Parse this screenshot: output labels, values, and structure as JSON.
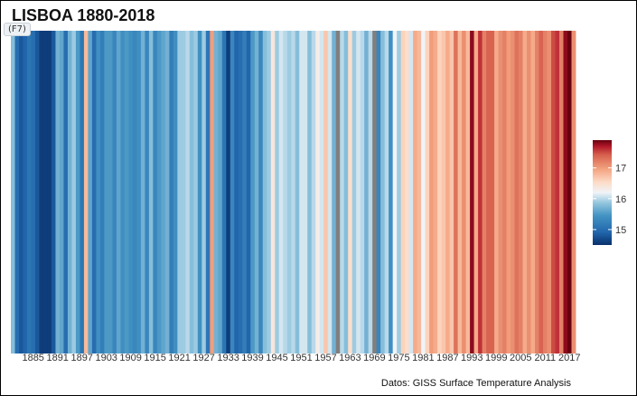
{
  "window": {
    "hotkey": "(F7)"
  },
  "chart_data": {
    "type": "heatmap",
    "title": "LISBOA 1880-2018",
    "caption": "Datos: GISS Surface Temperature Analysis",
    "x_start": 1880,
    "x_end": 2018,
    "tick_labels": [
      "1885",
      "1891",
      "1897",
      "1903",
      "1909",
      "1915",
      "1921",
      "1927",
      "1933",
      "1939",
      "1945",
      "1951",
      "1957",
      "1963",
      "1969",
      "1975",
      "1981",
      "1987",
      "1993",
      "1999",
      "2005",
      "2011",
      "2017"
    ],
    "legend": {
      "ticks": [
        15,
        16,
        17
      ],
      "range": [
        14.5,
        17.9
      ],
      "placement": "right"
    },
    "missing_years": [
      1960,
      1969
    ],
    "values": [
      15.8,
      15.0,
      14.8,
      14.9,
      15.1,
      15.0,
      14.8,
      14.6,
      14.6,
      14.6,
      14.8,
      15.7,
      15.6,
      15.0,
      15.7,
      15.9,
      15.5,
      15.1,
      16.8,
      15.6,
      15.0,
      15.4,
      15.2,
      15.5,
      15.5,
      15.3,
      15.6,
      15.4,
      15.5,
      15.4,
      15.3,
      15.4,
      15.7,
      15.3,
      15.8,
      15.3,
      15.5,
      15.6,
      15.7,
      15.2,
      15.4,
      15.9,
      15.9,
      16.0,
      15.8,
      15.9,
      15.4,
      15.9,
      15.1,
      17.0,
      15.7,
      15.6,
      15.1,
      14.6,
      15.3,
      14.9,
      15.0,
      15.2,
      14.9,
      15.5,
      15.7,
      15.3,
      15.8,
      15.9,
      16.4,
      15.9,
      16.1,
      16.0,
      15.9,
      16.0,
      15.8,
      16.1,
      16.1,
      15.8,
      16.0,
      16.3,
      16.1,
      16.7,
      16.1,
      15.7,
      null,
      16.0,
      15.8,
      16.5,
      15.9,
      16.1,
      16.0,
      15.7,
      16.0,
      null,
      15.3,
      15.8,
      16.0,
      15.4,
      16.2,
      15.9,
      16.6,
      16.5,
      16.1,
      16.9,
      16.8,
      16.2,
      16.6,
      17.0,
      16.9,
      16.6,
      16.7,
      16.9,
      16.7,
      17.3,
      16.8,
      17.1,
      16.8,
      17.8,
      16.9,
      17.6,
      17.2,
      17.4,
      17.4,
      16.9,
      17.1,
      17.2,
      17.0,
      17.1,
      17.3,
      17.2,
      16.9,
      17.1,
      16.9,
      17.2,
      17.4,
      17.2,
      17.1,
      17.5,
      17.6,
      17.2,
      17.8,
      17.9,
      17.1
    ]
  }
}
